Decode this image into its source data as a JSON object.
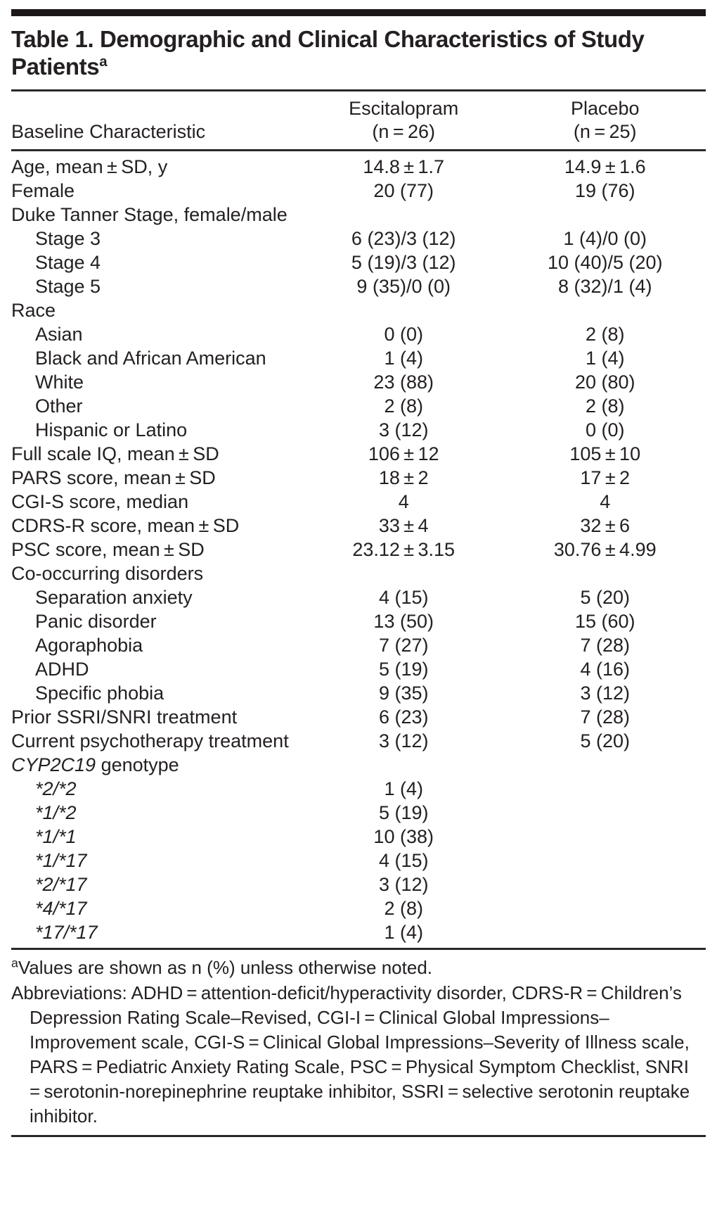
{
  "table": {
    "title": "Table 1. Demographic and Clinical Characteristics of Study Patients",
    "title_superscript": "a",
    "header": {
      "stub": "Baseline Characteristic",
      "col1_line1": "Escitalopram",
      "col1_line2": "(n = 26)",
      "col2_line1": "Placebo",
      "col2_line2": "(n = 25)"
    },
    "rows": [
      {
        "label": "Age, mean ± SD, y",
        "indent": 0,
        "values": [
          "14.8 ± 1.7",
          "14.9 ± 1.6"
        ]
      },
      {
        "label": "Female",
        "indent": 0,
        "values": [
          "20 (77)",
          "19 (76)"
        ]
      },
      {
        "label": "Duke Tanner Stage, female/male",
        "indent": 0,
        "values": [
          "",
          ""
        ]
      },
      {
        "label": "Stage 3",
        "indent": 1,
        "values": [
          "6 (23)/3 (12)",
          "1 (4)/0 (0)"
        ]
      },
      {
        "label": "Stage 4",
        "indent": 1,
        "values": [
          "5 (19)/3 (12)",
          "10 (40)/5 (20)"
        ]
      },
      {
        "label": "Stage 5",
        "indent": 1,
        "values": [
          "9 (35)/0 (0)",
          "8 (32)/1 (4)"
        ]
      },
      {
        "label": "Race",
        "indent": 0,
        "values": [
          "",
          ""
        ]
      },
      {
        "label": "Asian",
        "indent": 1,
        "values": [
          "0 (0)",
          "2 (8)"
        ]
      },
      {
        "label": "Black and African American",
        "indent": 1,
        "values": [
          "1 (4)",
          "1 (4)"
        ]
      },
      {
        "label": "White",
        "indent": 1,
        "values": [
          "23 (88)",
          "20 (80)"
        ]
      },
      {
        "label": "Other",
        "indent": 1,
        "values": [
          "2 (8)",
          "2 (8)"
        ]
      },
      {
        "label": "Hispanic or Latino",
        "indent": 1,
        "values": [
          "3 (12)",
          "0 (0)"
        ]
      },
      {
        "label": "Full scale IQ, mean ± SD",
        "indent": 0,
        "values": [
          "106 ± 12",
          "105 ± 10"
        ]
      },
      {
        "label": "PARS score, mean ± SD",
        "indent": 0,
        "values": [
          "18 ± 2",
          "17 ± 2"
        ]
      },
      {
        "label": "CGI-S score, median",
        "indent": 0,
        "values": [
          "4",
          "4"
        ]
      },
      {
        "label": "CDRS-R score, mean ± SD",
        "indent": 0,
        "values": [
          "33 ± 4",
          "32 ± 6"
        ]
      },
      {
        "label": "PSC score, mean ± SD",
        "indent": 0,
        "values": [
          "23.12 ± 3.15",
          "30.76 ± 4.99"
        ]
      },
      {
        "label": "Co-occurring disorders",
        "indent": 0,
        "values": [
          "",
          ""
        ]
      },
      {
        "label": "Separation anxiety",
        "indent": 1,
        "values": [
          "4 (15)",
          "5 (20)"
        ]
      },
      {
        "label": "Panic disorder",
        "indent": 1,
        "values": [
          "13 (50)",
          "15 (60)"
        ]
      },
      {
        "label": "Agoraphobia",
        "indent": 1,
        "values": [
          "7 (27)",
          "7 (28)"
        ]
      },
      {
        "label": "ADHD",
        "indent": 1,
        "values": [
          "5 (19)",
          "4 (16)"
        ]
      },
      {
        "label": "Specific phobia",
        "indent": 1,
        "values": [
          "9 (35)",
          "3 (12)"
        ]
      },
      {
        "label": "Prior SSRI/SNRI treatment",
        "indent": 0,
        "values": [
          "6 (23)",
          "7 (28)"
        ]
      },
      {
        "label": "Current psychotherapy treatment",
        "indent": 0,
        "values": [
          "3 (12)",
          "5 (20)"
        ]
      },
      {
        "label": "CYP2C19 genotype",
        "indent": 0,
        "italic_prefix": "CYP2C19",
        "values": [
          "",
          ""
        ]
      },
      {
        "label": "*2/*2",
        "indent": 1,
        "italic": true,
        "values": [
          "1 (4)",
          ""
        ]
      },
      {
        "label": "*1/*2",
        "indent": 1,
        "italic": true,
        "values": [
          "5 (19)",
          ""
        ]
      },
      {
        "label": "*1/*1",
        "indent": 1,
        "italic": true,
        "values": [
          "10 (38)",
          ""
        ]
      },
      {
        "label": "*1/*17",
        "indent": 1,
        "italic": true,
        "values": [
          "4 (15)",
          ""
        ]
      },
      {
        "label": "*2/*17",
        "indent": 1,
        "italic": true,
        "values": [
          "3 (12)",
          ""
        ]
      },
      {
        "label": "*4/*17",
        "indent": 1,
        "italic": true,
        "values": [
          "2 (8)",
          ""
        ]
      },
      {
        "label": "*17/*17",
        "indent": 1,
        "italic": true,
        "values": [
          "1 (4)",
          ""
        ]
      }
    ]
  },
  "footnotes": {
    "values_marker": "a",
    "values_note": "Values are shown as n (%) unless otherwise noted.",
    "abbreviations": "Abbreviations: ADHD = attention-deficit/hyperactivity disorder, CDRS-R = Children’s Depression Rating Scale–Revised, CGI-I = Clinical Global Impressions–Improvement scale, CGI-S = Clinical Global Impressions–Severity of Illness scale, PARS = Pediatric Anxiety Rating Scale, PSC = Physical Symptom Checklist, SNRI = serotonin-norepinephrine reuptake inhibitor, SSRI = selective serotonin reuptake inhibitor."
  },
  "colors": {
    "text": "#242021",
    "rule": "#2b2728",
    "top_bar": "#1c1819",
    "background": "#ffffff"
  }
}
